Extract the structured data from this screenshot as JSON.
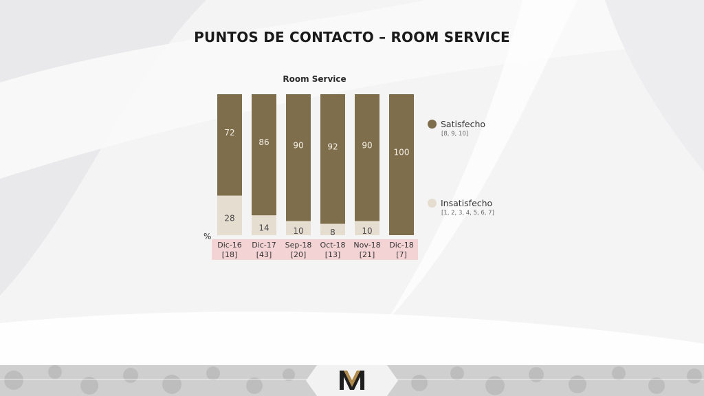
{
  "slide": {
    "title": "PUNTOS DE CONTACTO – ROOM SERVICE"
  },
  "colors": {
    "satisfied": "#7f6e4c",
    "unsatisfied": "#e6ddd1",
    "axis_band": "#f4d3d4"
  },
  "legend": {
    "satisfied": {
      "label": "Satisfecho",
      "range": "[8, 9, 10]"
    },
    "unsatisfied": {
      "label": "Insatisfecho",
      "range": "[1, 2, 3, 4, 5, 6, 7]"
    }
  },
  "chart_data": {
    "type": "bar",
    "stacked": true,
    "title": "Room Service",
    "ylabel": "%",
    "ylim": [
      0,
      100
    ],
    "categories": [
      "Dic-16",
      "Dic-17",
      "Sep-18",
      "Oct-18",
      "Nov-18",
      "Dic-18"
    ],
    "category_counts": [
      "[18]",
      "[43]",
      "[20]",
      "[13]",
      "[21]",
      "[7]"
    ],
    "series": [
      {
        "name": "Insatisfecho",
        "values": [
          28,
          14,
          10,
          8,
          10,
          0
        ]
      },
      {
        "name": "Satisfecho",
        "values": [
          72,
          86,
          90,
          92,
          90,
          100
        ]
      }
    ]
  }
}
